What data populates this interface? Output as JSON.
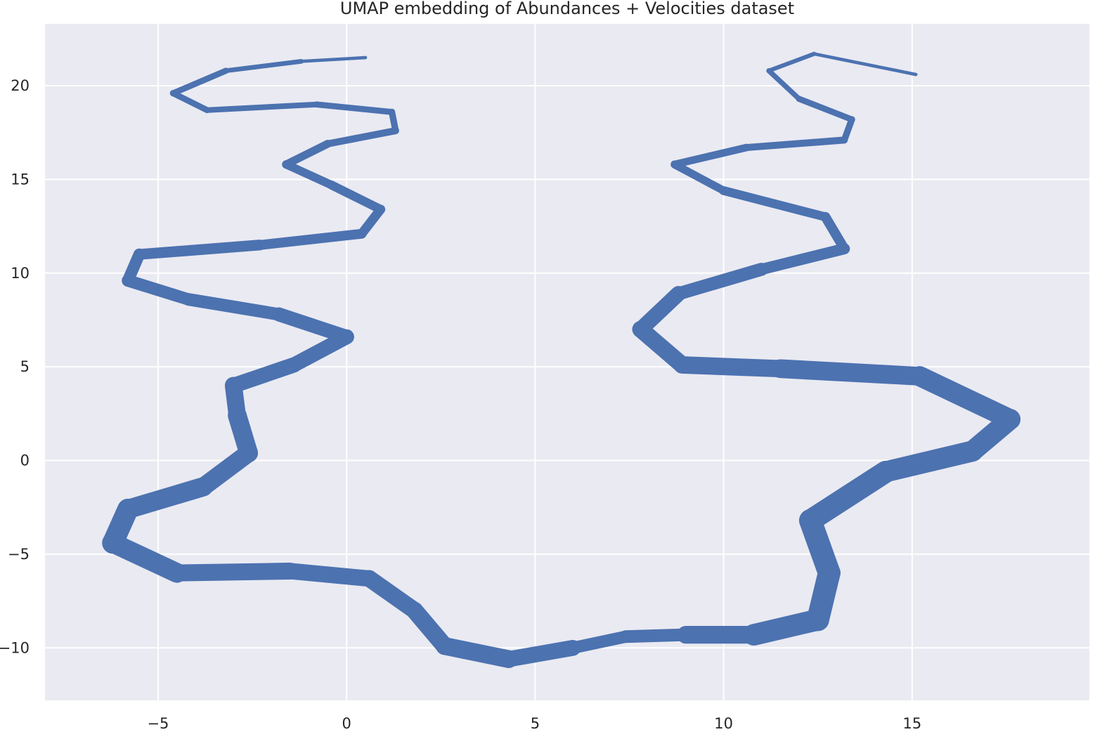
{
  "chart_data": {
    "type": "scatter",
    "title": "UMAP embedding of Abundances + Velocities dataset",
    "xlabel": "",
    "ylabel": "",
    "xlim": [
      -8,
      19.7
    ],
    "ylim": [
      -12.8,
      23.3
    ],
    "xticks": [
      -5,
      0,
      5,
      10,
      15
    ],
    "yticks": [
      -10,
      -5,
      0,
      5,
      10,
      15,
      20
    ],
    "xtick_labels": [
      "−5",
      "0",
      "5",
      "10",
      "15"
    ],
    "ytick_labels": [
      "−10",
      "−5",
      "0",
      "5",
      "10",
      "15",
      "20"
    ],
    "grid": true,
    "background": "#eaeaf2",
    "marker_color": "#4c72b0",
    "series": [
      {
        "points": [
          {
            "x": 0.5,
            "y": 21.5,
            "w": 0.15
          },
          {
            "x": -1.2,
            "y": 21.3,
            "w": 0.2
          },
          {
            "x": -3.2,
            "y": 20.8,
            "w": 0.3
          },
          {
            "x": -4.6,
            "y": 19.6,
            "w": 0.35
          },
          {
            "x": -3.7,
            "y": 18.7,
            "w": 0.3
          },
          {
            "x": -0.8,
            "y": 19.0,
            "w": 0.3
          },
          {
            "x": 1.2,
            "y": 18.6,
            "w": 0.35
          },
          {
            "x": 1.3,
            "y": 17.6,
            "w": 0.35
          },
          {
            "x": -0.5,
            "y": 16.9,
            "w": 0.4
          },
          {
            "x": -1.6,
            "y": 15.8,
            "w": 0.45
          },
          {
            "x": -0.4,
            "y": 14.7,
            "w": 0.45
          },
          {
            "x": 0.9,
            "y": 13.4,
            "w": 0.5
          },
          {
            "x": 0.4,
            "y": 12.1,
            "w": 0.5
          },
          {
            "x": -2.3,
            "y": 11.5,
            "w": 0.55
          },
          {
            "x": -5.5,
            "y": 11.0,
            "w": 0.6
          },
          {
            "x": -5.8,
            "y": 9.6,
            "w": 0.65
          },
          {
            "x": -4.2,
            "y": 8.6,
            "w": 0.65
          },
          {
            "x": -1.8,
            "y": 7.8,
            "w": 0.7
          },
          {
            "x": 0.0,
            "y": 6.6,
            "w": 0.8
          },
          {
            "x": -1.4,
            "y": 5.1,
            "w": 0.8
          },
          {
            "x": -3.0,
            "y": 4.0,
            "w": 0.85
          },
          {
            "x": -2.9,
            "y": 2.4,
            "w": 1.0
          },
          {
            "x": -2.6,
            "y": 0.4,
            "w": 1.0
          },
          {
            "x": -3.8,
            "y": -1.4,
            "w": 0.95
          },
          {
            "x": -5.8,
            "y": -2.6,
            "w": 1.1
          },
          {
            "x": -6.2,
            "y": -4.4,
            "w": 1.15
          },
          {
            "x": -4.5,
            "y": -6.0,
            "w": 0.95
          },
          {
            "x": -1.5,
            "y": -5.9,
            "w": 0.85
          },
          {
            "x": 0.6,
            "y": -6.3,
            "w": 0.9
          },
          {
            "x": 1.8,
            "y": -8.0,
            "w": 0.9
          },
          {
            "x": 2.6,
            "y": -9.9,
            "w": 0.95
          },
          {
            "x": 4.3,
            "y": -10.6,
            "w": 0.95
          },
          {
            "x": 6.0,
            "y": -10.0,
            "w": 0.75
          },
          {
            "x": 7.4,
            "y": -9.4,
            "w": 0.55
          },
          {
            "x": 9.0,
            "y": -9.3,
            "w": 0.8
          },
          {
            "x": 10.8,
            "y": -9.3,
            "w": 1.1
          },
          {
            "x": 12.5,
            "y": -8.5,
            "w": 1.2
          },
          {
            "x": 12.8,
            "y": -6.0,
            "w": 1.2
          },
          {
            "x": 12.3,
            "y": -3.2,
            "w": 1.2
          },
          {
            "x": 14.3,
            "y": -0.6,
            "w": 1.15
          },
          {
            "x": 16.6,
            "y": 0.5,
            "w": 1.1
          },
          {
            "x": 17.6,
            "y": 2.2,
            "w": 1.1
          },
          {
            "x": 15.2,
            "y": 4.5,
            "w": 1.05
          },
          {
            "x": 11.5,
            "y": 4.9,
            "w": 0.95
          },
          {
            "x": 8.9,
            "y": 5.1,
            "w": 0.9
          },
          {
            "x": 7.8,
            "y": 7.0,
            "w": 0.9
          },
          {
            "x": 8.8,
            "y": 8.9,
            "w": 0.75
          },
          {
            "x": 11.0,
            "y": 10.2,
            "w": 0.65
          },
          {
            "x": 13.2,
            "y": 11.3,
            "w": 0.55
          },
          {
            "x": 12.7,
            "y": 13.0,
            "w": 0.5
          },
          {
            "x": 10.0,
            "y": 14.4,
            "w": 0.45
          },
          {
            "x": 8.7,
            "y": 15.8,
            "w": 0.4
          },
          {
            "x": 10.6,
            "y": 16.7,
            "w": 0.4
          },
          {
            "x": 13.2,
            "y": 17.1,
            "w": 0.35
          },
          {
            "x": 13.4,
            "y": 18.2,
            "w": 0.35
          },
          {
            "x": 12.0,
            "y": 19.3,
            "w": 0.3
          },
          {
            "x": 11.2,
            "y": 20.8,
            "w": 0.25
          },
          {
            "x": 12.4,
            "y": 21.7,
            "w": 0.2
          },
          {
            "x": 15.1,
            "y": 20.6,
            "w": 0.15
          }
        ]
      }
    ]
  }
}
